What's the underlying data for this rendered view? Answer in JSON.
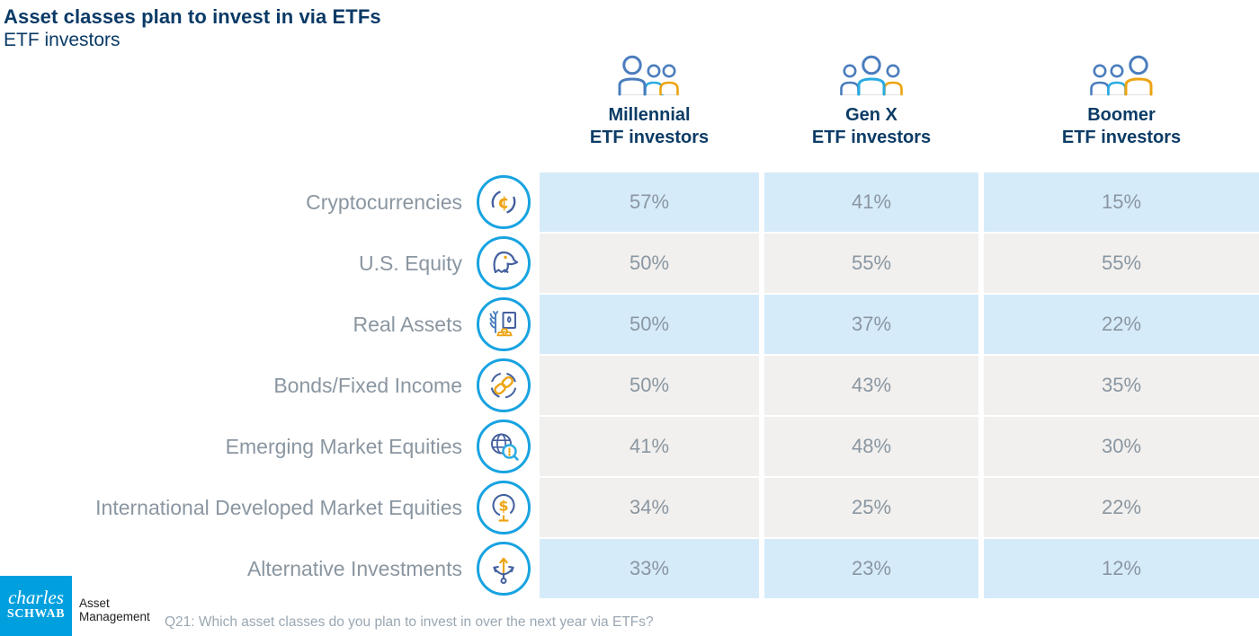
{
  "title": "Asset classes plan to invest in via ETFs",
  "subtitle": "ETF investors",
  "columns": [
    {
      "name_line1": "Millennial",
      "name_line2": "ETF investors",
      "icon": "millennial-investors-icon",
      "highlight": 0
    },
    {
      "name_line1": "Gen X",
      "name_line2": "ETF investors",
      "icon": "genx-investors-icon",
      "highlight": 1
    },
    {
      "name_line1": "Boomer",
      "name_line2": "ETF investors",
      "icon": "boomer-investors-icon",
      "highlight": 2
    }
  ],
  "rows": [
    {
      "label": "Cryptocurrencies",
      "icon": "cryptocurrencies-icon",
      "shade": "blue",
      "values": [
        "57%",
        "41%",
        "15%"
      ]
    },
    {
      "label": "U.S. Equity",
      "icon": "us-equity-eagle-icon",
      "shade": "gray",
      "values": [
        "50%",
        "55%",
        "55%"
      ]
    },
    {
      "label": "Real Assets",
      "icon": "real-assets-icon",
      "shade": "blue",
      "values": [
        "50%",
        "37%",
        "22%"
      ]
    },
    {
      "label": "Bonds/Fixed Income",
      "icon": "bonds-fixed-income-icon",
      "shade": "gray",
      "values": [
        "50%",
        "43%",
        "35%"
      ]
    },
    {
      "label": "Emerging Market Equities",
      "icon": "emerging-market-equities-icon",
      "shade": "gray",
      "values": [
        "41%",
        "48%",
        "30%"
      ]
    },
    {
      "label": "International Developed Market Equities",
      "icon": "intl-developed-equities-icon",
      "shade": "gray",
      "values": [
        "34%",
        "25%",
        "22%"
      ]
    },
    {
      "label": "Alternative Investments",
      "icon": "alternative-investments-icon",
      "shade": "blue",
      "values": [
        "33%",
        "23%",
        "12%"
      ]
    }
  ],
  "footer": {
    "note": "Q21: Which asset classes do you plan to invest in over the next year via ETFs?"
  },
  "logo": {
    "line1": "charles",
    "line2": "SCHWAB",
    "unit_line1": "Asset",
    "unit_line2": "Management"
  },
  "colors": {
    "navy_text": "#0a3a66",
    "accent_cyan": "#18a3e1",
    "icon_navy": "#44609f",
    "person_blue": "#4a7dbd",
    "person_cyan": "#29abe2",
    "gold": "#eda413",
    "row_blue": "#d6ebfa",
    "row_gray": "#f1f0ee",
    "value_gray": "#8a96a1",
    "logo_blue": "#00a0df"
  },
  "chart_data": {
    "type": "table",
    "title": "Asset classes plan to invest in via ETFs",
    "subtitle": "ETF investors",
    "categories": [
      "Cryptocurrencies",
      "U.S. Equity",
      "Real Assets",
      "Bonds/Fixed Income",
      "Emerging Market Equities",
      "International Developed Market Equities",
      "Alternative Investments"
    ],
    "series": [
      {
        "name": "Millennial ETF investors",
        "values": [
          57,
          50,
          50,
          50,
          41,
          34,
          33
        ]
      },
      {
        "name": "Gen X ETF investors",
        "values": [
          41,
          55,
          37,
          43,
          48,
          25,
          23
        ]
      },
      {
        "name": "Boomer ETF investors",
        "values": [
          15,
          55,
          22,
          35,
          30,
          22,
          12
        ]
      }
    ],
    "unit": "%",
    "note": "Q21: Which asset classes do you plan to invest in over the next year via ETFs?"
  }
}
